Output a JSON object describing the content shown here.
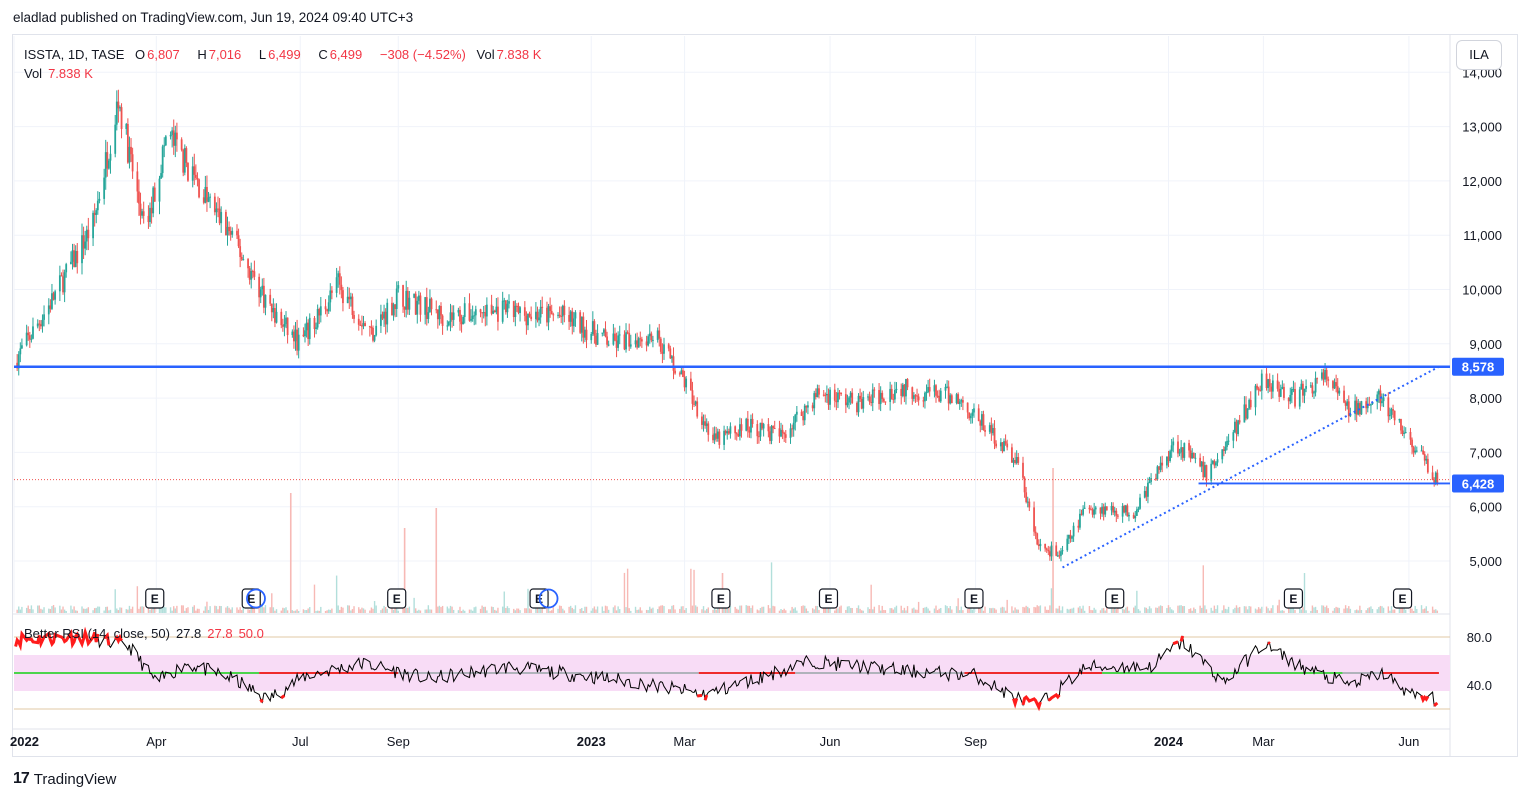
{
  "header": {
    "published": "eladlad published on TradingView.com, Jun 19, 2024 09:40 UTC+3"
  },
  "legend": {
    "symbol": "ISSTA, 1D, TASE",
    "open_label": "O",
    "open": "6,807",
    "high_label": "H",
    "high": "7,016",
    "low_label": "L",
    "low": "6,499",
    "close_label": "C",
    "close": "6,499",
    "change": "−308 (−4.52%)",
    "vol_label": "Vol",
    "vol": "7.838 K",
    "vol2_label": "Vol",
    "vol2": "7.838 K"
  },
  "currency_button": "ILA",
  "rsi_legend": {
    "name": "Better RSI (14, close, 50)",
    "v1": "27.8",
    "v2": "27.8",
    "v3": "50.0"
  },
  "footer": {
    "brand": "TradingView",
    "mark": "17"
  },
  "colors": {
    "up": "#26a69a",
    "down": "#ef5350",
    "hline": "#2962ff",
    "rsi_line": "#000000",
    "rsi_band": "#f8dcf6",
    "rsi_mid_up": "#4cd44c",
    "rsi_mid_down": "#ef2b2b"
  },
  "chart_data": {
    "type": "candlestick",
    "price_axis": {
      "ticks": [
        5000,
        6000,
        7000,
        8000,
        9000,
        10000,
        11000,
        12000,
        13000,
        14000
      ],
      "tick_labels": [
        "5,000",
        "6,000",
        "7,000",
        "8,000",
        "9,000",
        "10,000",
        "11,000",
        "12,000",
        "13,000",
        "14,000"
      ],
      "ylim": [
        4200,
        14500
      ]
    },
    "time_axis": {
      "labels": [
        "2022",
        "Apr",
        "Jul",
        "Sep",
        "2023",
        "Mar",
        "Jun",
        "Sep",
        "2024",
        "Mar",
        "Jun"
      ]
    },
    "anchors": [
      {
        "t": "2022-01-01",
        "p": 8650
      },
      {
        "t": "2022-01-25",
        "p": 9800
      },
      {
        "t": "2022-02-20",
        "p": 11200
      },
      {
        "t": "2022-03-08",
        "p": 13500
      },
      {
        "t": "2022-03-25",
        "p": 11000
      },
      {
        "t": "2022-04-08",
        "p": 12900
      },
      {
        "t": "2022-04-30",
        "p": 11800
      },
      {
        "t": "2022-05-18",
        "p": 11000
      },
      {
        "t": "2022-06-15",
        "p": 9500
      },
      {
        "t": "2022-07-01",
        "p": 9000
      },
      {
        "t": "2022-07-25",
        "p": 10100
      },
      {
        "t": "2022-08-15",
        "p": 9200
      },
      {
        "t": "2022-09-01",
        "p": 9900
      },
      {
        "t": "2022-10-01",
        "p": 9500
      },
      {
        "t": "2022-11-01",
        "p": 9600
      },
      {
        "t": "2022-12-15",
        "p": 9500
      },
      {
        "t": "2023-01-15",
        "p": 9000
      },
      {
        "t": "2023-02-10",
        "p": 9200
      },
      {
        "t": "2023-03-01",
        "p": 8300
      },
      {
        "t": "2023-03-20",
        "p": 7200
      },
      {
        "t": "2023-04-10",
        "p": 7500
      },
      {
        "t": "2023-05-01",
        "p": 7300
      },
      {
        "t": "2023-05-25",
        "p": 8100
      },
      {
        "t": "2023-06-20",
        "p": 7900
      },
      {
        "t": "2023-07-15",
        "p": 8200
      },
      {
        "t": "2023-08-20",
        "p": 8000
      },
      {
        "t": "2023-09-10",
        "p": 7400
      },
      {
        "t": "2023-09-28",
        "p": 6800
      },
      {
        "t": "2023-10-10",
        "p": 5300
      },
      {
        "t": "2023-10-25",
        "p": 5100
      },
      {
        "t": "2023-11-10",
        "p": 6000
      },
      {
        "t": "2023-12-10",
        "p": 5900
      },
      {
        "t": "2024-01-05",
        "p": 7200
      },
      {
        "t": "2024-01-25",
        "p": 6600
      },
      {
        "t": "2024-02-10",
        "p": 7300
      },
      {
        "t": "2024-03-01",
        "p": 8400
      },
      {
        "t": "2024-03-20",
        "p": 8000
      },
      {
        "t": "2024-04-10",
        "p": 8400
      },
      {
        "t": "2024-04-25",
        "p": 7700
      },
      {
        "t": "2024-05-10",
        "p": 8100
      },
      {
        "t": "2024-05-25",
        "p": 7500
      },
      {
        "t": "2024-06-19",
        "p": 6499
      }
    ],
    "horizontal_lines": [
      {
        "price": 8578,
        "label": "8,578"
      },
      {
        "price": 6428,
        "label": "6,428"
      }
    ],
    "trendline": {
      "from": {
        "t": "2023-10-26",
        "p": 4880
      },
      "to": {
        "t": "2024-06-20",
        "p": 8578
      },
      "style": "dotted"
    },
    "last_price": 6499,
    "earnings_markers": {
      "label": "E",
      "dates": [
        "2022-03-31",
        "2022-05-31",
        "2022-08-31",
        "2022-11-29",
        "2023-03-24",
        "2023-05-31",
        "2023-08-31",
        "2023-11-28",
        "2024-03-20",
        "2024-05-28"
      ]
    },
    "dividend_markers": [
      "2022-06-03",
      "2022-12-05"
    ],
    "rsi": {
      "name": "Better RSI (14, close, 50)",
      "value": 27.8,
      "ma_length": 50,
      "ticks": [
        40.0,
        80.0
      ],
      "tick_labels": [
        "40.0",
        "80.0"
      ],
      "upper": 80,
      "lower": 20,
      "band": [
        35,
        65
      ],
      "anchors": [
        {
          "t": "2022-01-01",
          "v": 78
        },
        {
          "t": "2022-02-15",
          "v": 80
        },
        {
          "t": "2022-03-15",
          "v": 72
        },
        {
          "t": "2022-04-01",
          "v": 42
        },
        {
          "t": "2022-04-20",
          "v": 58
        },
        {
          "t": "2022-05-20",
          "v": 45
        },
        {
          "t": "2022-06-10",
          "v": 28
        },
        {
          "t": "2022-07-05",
          "v": 48
        },
        {
          "t": "2022-08-10",
          "v": 58
        },
        {
          "t": "2022-09-20",
          "v": 45
        },
        {
          "t": "2022-11-10",
          "v": 55
        },
        {
          "t": "2023-01-20",
          "v": 44
        },
        {
          "t": "2023-03-15",
          "v": 32
        },
        {
          "t": "2023-05-20",
          "v": 60
        },
        {
          "t": "2023-07-15",
          "v": 52
        },
        {
          "t": "2023-09-01",
          "v": 48
        },
        {
          "t": "2023-09-25",
          "v": 30
        },
        {
          "t": "2023-10-10",
          "v": 22
        },
        {
          "t": "2023-11-10",
          "v": 55
        },
        {
          "t": "2023-12-20",
          "v": 55
        },
        {
          "t": "2024-01-10",
          "v": 76
        },
        {
          "t": "2024-02-05",
          "v": 42
        },
        {
          "t": "2024-03-01",
          "v": 74
        },
        {
          "t": "2024-03-25",
          "v": 55
        },
        {
          "t": "2024-04-25",
          "v": 40
        },
        {
          "t": "2024-05-15",
          "v": 50
        },
        {
          "t": "2024-06-05",
          "v": 30
        },
        {
          "t": "2024-06-19",
          "v": 28
        }
      ]
    }
  }
}
